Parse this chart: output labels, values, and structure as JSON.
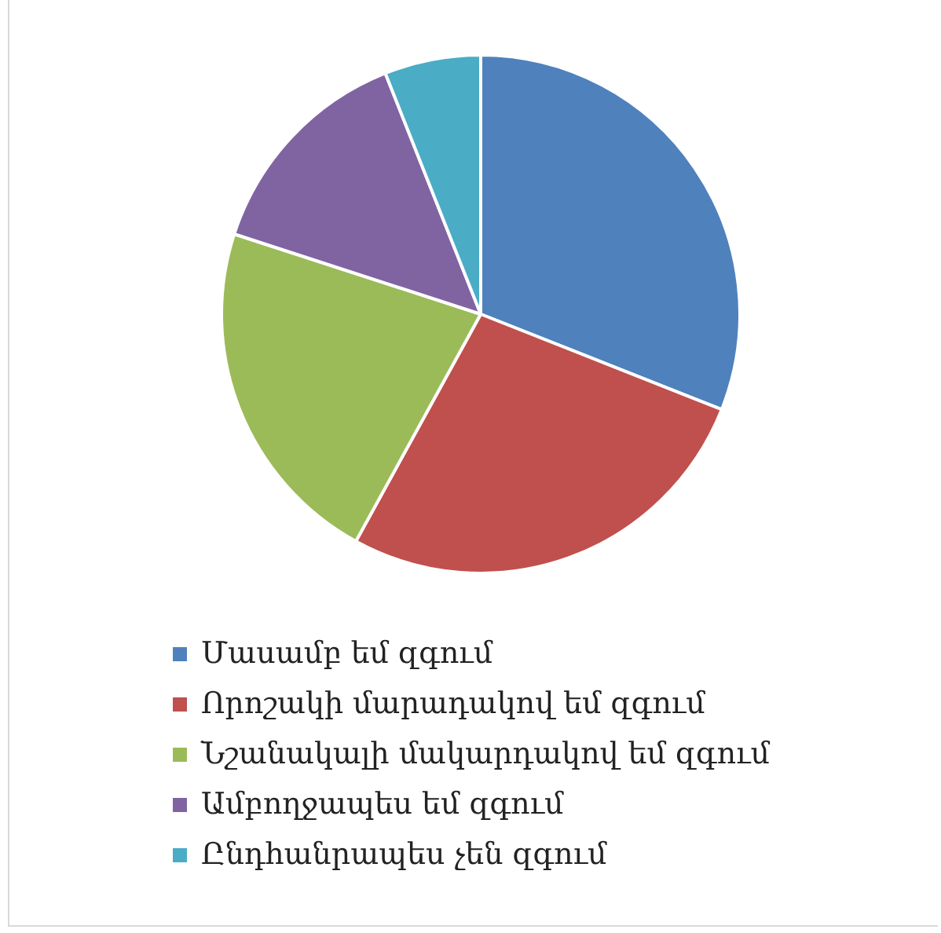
{
  "chart_data": {
    "type": "pie",
    "categories": [
      "Մասամբ եմ զգում",
      "Որոշակի մարադակով եմ զգում",
      "Նշանակալի մակարդակով եմ զգում",
      "Ամբողջապես եմ զգում",
      "Ընդհանրապես չեն զգում"
    ],
    "values": [
      31,
      27,
      22,
      14,
      6
    ],
    "colors": [
      "#4f81bd",
      "#c0504d",
      "#9bbb59",
      "#8064a2",
      "#4bacc6"
    ],
    "legend": "bottom"
  }
}
